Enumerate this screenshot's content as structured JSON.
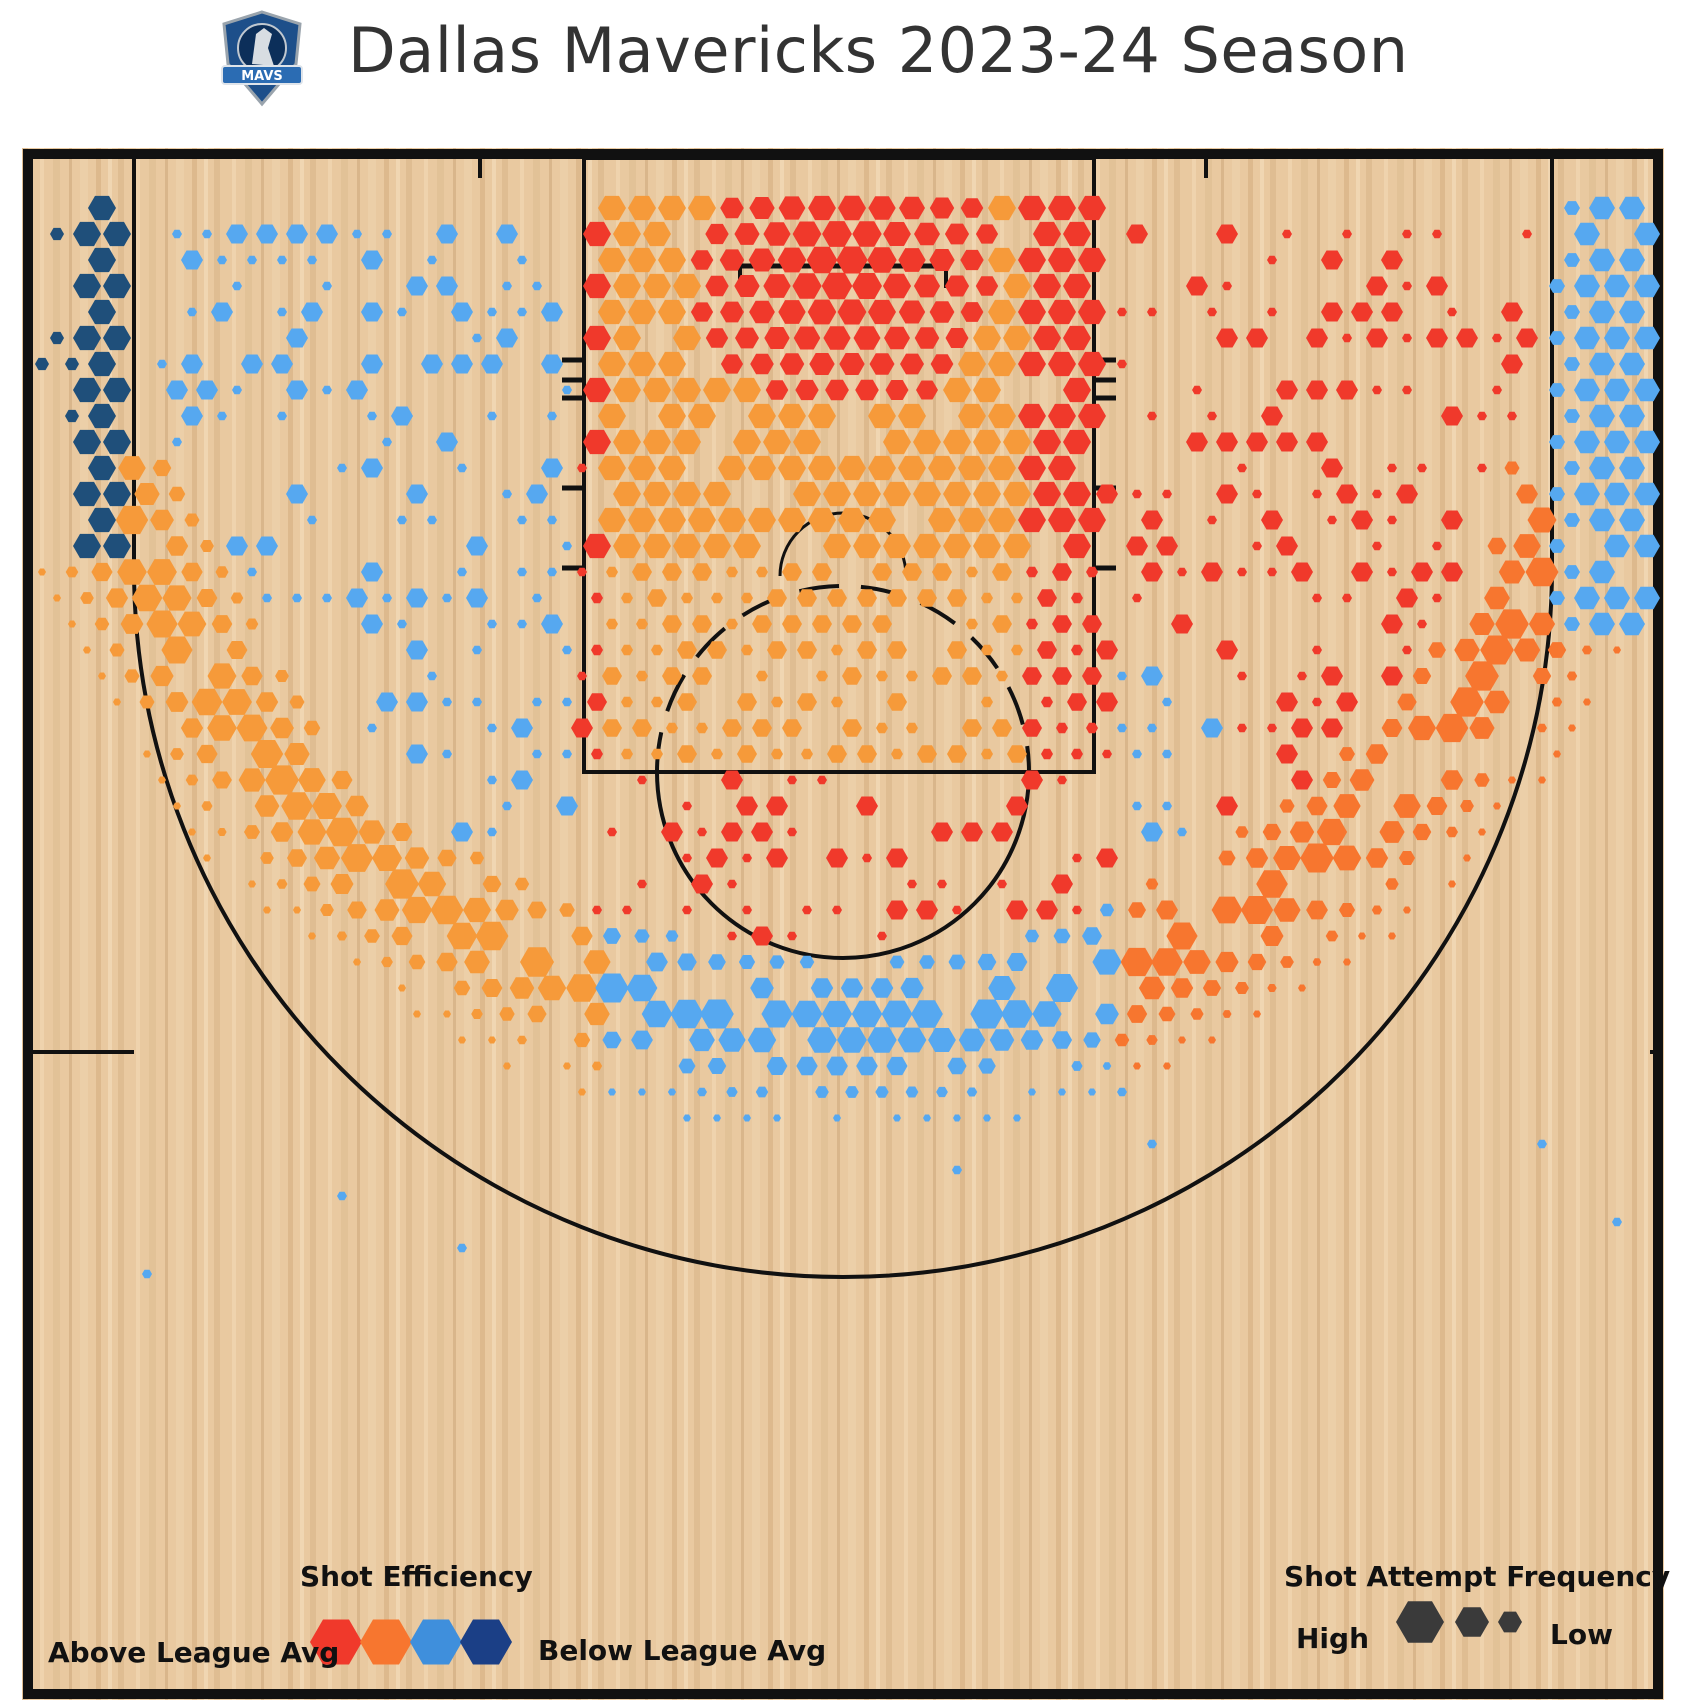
{
  "header": {
    "title": "Dallas Mavericks 2023-24 Season",
    "logo_icon": "mavericks-logo-icon"
  },
  "colors": {
    "above_strong": "#f0392b",
    "above": "#f7762f",
    "above_mild": "#f69a3a",
    "below_mild": "#56a8f0",
    "below": "#3f8fdc",
    "below_strong": "#1f4f7a",
    "court_wood": "#e9c9a0",
    "lines": "#111111"
  },
  "legend": {
    "efficiency_title": "Shot Efficiency",
    "above_label": "Above League Avg",
    "below_label": "Below League Avg",
    "efficiency_scale": [
      "#f0392b",
      "#f7762f",
      "#3f8fdc",
      "#1b3f86"
    ],
    "frequency_title": "Shot Attempt Frequency",
    "high_label": "High",
    "low_label": "Low",
    "frequency_color": "#3a3a3a"
  },
  "chart_data": {
    "type": "heatmap",
    "title": "Dallas Mavericks 2023-24 Season",
    "encoding": "hexbin shot chart; color = shot efficiency vs league average, size = shot attempt frequency",
    "regions": [
      {
        "zone": "restricted area",
        "efficiency": "above",
        "frequency": "high",
        "color": "#f0392b"
      },
      {
        "zone": "paint (non-RA)",
        "efficiency": "above",
        "frequency": "high",
        "color": "#f69a3a"
      },
      {
        "zone": "right mid-range",
        "efficiency": "above",
        "frequency": "medium",
        "color": "#f0392b"
      },
      {
        "zone": "left mid-range",
        "efficiency": "below",
        "frequency": "low",
        "color": "#56a8f0"
      },
      {
        "zone": "left corner three",
        "efficiency": "below",
        "frequency": "high",
        "color": "#1f4f7a"
      },
      {
        "zone": "right corner three",
        "efficiency": "below",
        "frequency": "high",
        "color": "#56a8f0"
      },
      {
        "zone": "left wing three",
        "efficiency": "above",
        "frequency": "high",
        "color": "#f69a3a"
      },
      {
        "zone": "top of key three",
        "efficiency": "below",
        "frequency": "high",
        "color": "#56a8f0"
      },
      {
        "zone": "right wing three",
        "efficiency": "above",
        "frequency": "high",
        "color": "#f7762f"
      },
      {
        "zone": "deep / backcourt",
        "efficiency": "below",
        "frequency": "low",
        "color": "#56a8f0"
      }
    ]
  }
}
